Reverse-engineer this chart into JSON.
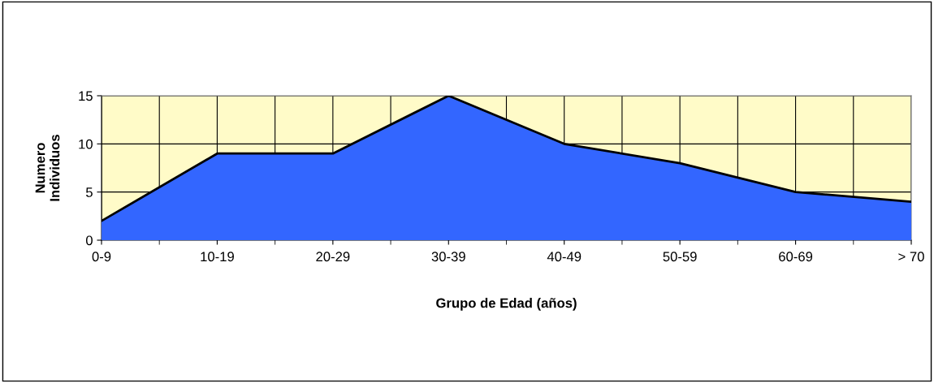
{
  "chart_data": {
    "type": "area",
    "xlabel": "Grupo de Edad (años)",
    "ylabel": "Numero\nIndividuos",
    "categories": [
      "0-9",
      "10-19",
      "20-29",
      "30-39",
      "40-49",
      "50-59",
      "60-69",
      "> 70"
    ],
    "values": [
      2,
      9,
      9,
      15,
      10,
      8,
      5,
      4
    ],
    "color": "#3366ff",
    "ylim": [
      0,
      15
    ],
    "yticks": [
      0,
      5,
      10,
      15
    ],
    "grid": true
  }
}
